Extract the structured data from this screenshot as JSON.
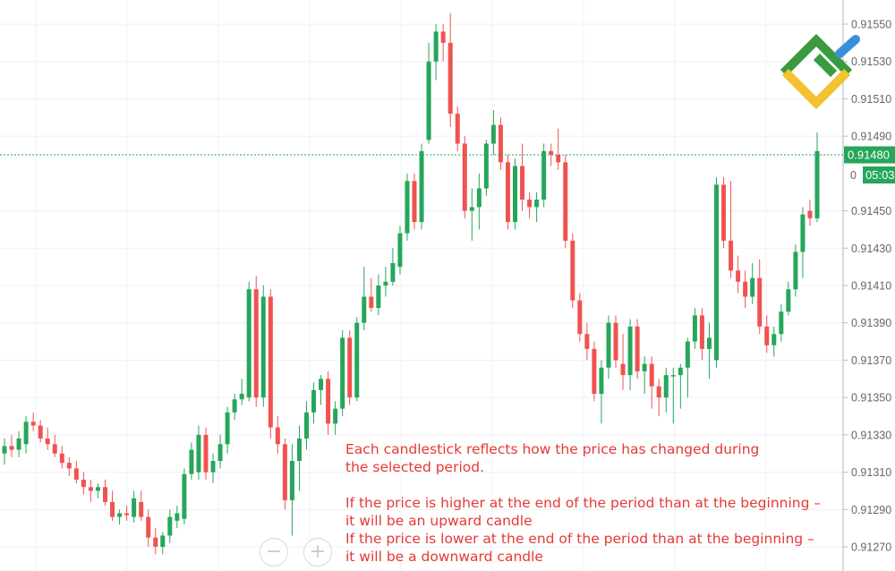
{
  "chart_data": {
    "type": "candlestick",
    "ylim": [
      0.91265,
      0.9156
    ],
    "y_ticks": [
      "0.91550",
      "0.91530",
      "0.91510",
      "0.91490",
      "0.91450",
      "0.91430",
      "0.91410",
      "0.91390",
      "0.91370",
      "0.91350",
      "0.91330",
      "0.91310",
      "0.91290",
      "0.91270"
    ],
    "current_price": {
      "value": 0.9148,
      "label": "0.91480",
      "timer": "05:03"
    },
    "partial_tick_label": "0",
    "grid": true,
    "colors": {
      "up": "#26a65b",
      "down": "#ef5350",
      "price_tag": "#26a65b",
      "grid": "#eef1f5",
      "axis": "#b0b6c0"
    },
    "candles": [
      {
        "o": 0.9132,
        "h": 0.91328,
        "l": 0.91314,
        "c": 0.91324
      },
      {
        "o": 0.91324,
        "h": 0.9133,
        "l": 0.91318,
        "c": 0.91322
      },
      {
        "o": 0.91322,
        "h": 0.91332,
        "l": 0.91318,
        "c": 0.91328
      },
      {
        "o": 0.91325,
        "h": 0.9134,
        "l": 0.9132,
        "c": 0.91337
      },
      {
        "o": 0.91337,
        "h": 0.91342,
        "l": 0.91332,
        "c": 0.91335
      },
      {
        "o": 0.91335,
        "h": 0.91338,
        "l": 0.91326,
        "c": 0.91328
      },
      {
        "o": 0.91328,
        "h": 0.91334,
        "l": 0.91322,
        "c": 0.91325
      },
      {
        "o": 0.91325,
        "h": 0.9133,
        "l": 0.91318,
        "c": 0.9132
      },
      {
        "o": 0.9132,
        "h": 0.91324,
        "l": 0.91312,
        "c": 0.91315
      },
      {
        "o": 0.91315,
        "h": 0.91318,
        "l": 0.91308,
        "c": 0.91312
      },
      {
        "o": 0.91312,
        "h": 0.91316,
        "l": 0.91304,
        "c": 0.91306
      },
      {
        "o": 0.91306,
        "h": 0.9131,
        "l": 0.91298,
        "c": 0.91302
      },
      {
        "o": 0.91302,
        "h": 0.91306,
        "l": 0.91294,
        "c": 0.913
      },
      {
        "o": 0.913,
        "h": 0.91304,
        "l": 0.91296,
        "c": 0.91302
      },
      {
        "o": 0.91302,
        "h": 0.91306,
        "l": 0.91292,
        "c": 0.91294
      },
      {
        "o": 0.91294,
        "h": 0.913,
        "l": 0.91284,
        "c": 0.91286
      },
      {
        "o": 0.91286,
        "h": 0.9129,
        "l": 0.91282,
        "c": 0.91288
      },
      {
        "o": 0.91288,
        "h": 0.91292,
        "l": 0.91284,
        "c": 0.91287
      },
      {
        "o": 0.91286,
        "h": 0.913,
        "l": 0.91283,
        "c": 0.91296
      },
      {
        "o": 0.91294,
        "h": 0.913,
        "l": 0.91284,
        "c": 0.91286
      },
      {
        "o": 0.91286,
        "h": 0.9129,
        "l": 0.9127,
        "c": 0.91275
      },
      {
        "o": 0.91275,
        "h": 0.9128,
        "l": 0.91266,
        "c": 0.9127
      },
      {
        "o": 0.9127,
        "h": 0.91278,
        "l": 0.91266,
        "c": 0.91276
      },
      {
        "o": 0.91276,
        "h": 0.9129,
        "l": 0.91272,
        "c": 0.91286
      },
      {
        "o": 0.91284,
        "h": 0.91292,
        "l": 0.9128,
        "c": 0.91288
      },
      {
        "o": 0.91285,
        "h": 0.91312,
        "l": 0.91282,
        "c": 0.91309
      },
      {
        "o": 0.91309,
        "h": 0.91326,
        "l": 0.91306,
        "c": 0.91322
      },
      {
        "o": 0.9131,
        "h": 0.91335,
        "l": 0.91306,
        "c": 0.9133
      },
      {
        "o": 0.9133,
        "h": 0.91334,
        "l": 0.91306,
        "c": 0.9131
      },
      {
        "o": 0.9131,
        "h": 0.9132,
        "l": 0.91304,
        "c": 0.91316
      },
      {
        "o": 0.91316,
        "h": 0.9133,
        "l": 0.91312,
        "c": 0.91325
      },
      {
        "o": 0.91325,
        "h": 0.91345,
        "l": 0.9132,
        "c": 0.91342
      },
      {
        "o": 0.91342,
        "h": 0.91352,
        "l": 0.91338,
        "c": 0.91349
      },
      {
        "o": 0.91349,
        "h": 0.9136,
        "l": 0.91346,
        "c": 0.91352
      },
      {
        "o": 0.9135,
        "h": 0.91412,
        "l": 0.91348,
        "c": 0.91408
      },
      {
        "o": 0.91408,
        "h": 0.91415,
        "l": 0.91345,
        "c": 0.9135
      },
      {
        "o": 0.9135,
        "h": 0.9141,
        "l": 0.91345,
        "c": 0.91404
      },
      {
        "o": 0.91404,
        "h": 0.91408,
        "l": 0.91328,
        "c": 0.91334
      },
      {
        "o": 0.91334,
        "h": 0.9134,
        "l": 0.9132,
        "c": 0.91325
      },
      {
        "o": 0.91325,
        "h": 0.91328,
        "l": 0.9129,
        "c": 0.91295
      },
      {
        "o": 0.91295,
        "h": 0.91325,
        "l": 0.91276,
        "c": 0.91316
      },
      {
        "o": 0.91316,
        "h": 0.91335,
        "l": 0.913,
        "c": 0.91328
      },
      {
        "o": 0.91328,
        "h": 0.91348,
        "l": 0.91322,
        "c": 0.91342
      },
      {
        "o": 0.91342,
        "h": 0.91358,
        "l": 0.91336,
        "c": 0.91354
      },
      {
        "o": 0.91354,
        "h": 0.91362,
        "l": 0.91346,
        "c": 0.9136
      },
      {
        "o": 0.9136,
        "h": 0.91364,
        "l": 0.9133,
        "c": 0.91336
      },
      {
        "o": 0.91336,
        "h": 0.91348,
        "l": 0.9133,
        "c": 0.91344
      },
      {
        "o": 0.91344,
        "h": 0.91386,
        "l": 0.9134,
        "c": 0.91382
      },
      {
        "o": 0.91382,
        "h": 0.91386,
        "l": 0.91346,
        "c": 0.9135
      },
      {
        "o": 0.9135,
        "h": 0.91393,
        "l": 0.91348,
        "c": 0.9139
      },
      {
        "o": 0.9139,
        "h": 0.9142,
        "l": 0.91386,
        "c": 0.91404
      },
      {
        "o": 0.91404,
        "h": 0.91414,
        "l": 0.91396,
        "c": 0.91398
      },
      {
        "o": 0.91398,
        "h": 0.91416,
        "l": 0.91394,
        "c": 0.9141
      },
      {
        "o": 0.9141,
        "h": 0.9142,
        "l": 0.91404,
        "c": 0.91412
      },
      {
        "o": 0.91412,
        "h": 0.9143,
        "l": 0.9141,
        "c": 0.91422
      },
      {
        "o": 0.9142,
        "h": 0.91442,
        "l": 0.91416,
        "c": 0.91438
      },
      {
        "o": 0.91438,
        "h": 0.9147,
        "l": 0.91434,
        "c": 0.91466
      },
      {
        "o": 0.91466,
        "h": 0.9147,
        "l": 0.9144,
        "c": 0.91444
      },
      {
        "o": 0.91444,
        "h": 0.91486,
        "l": 0.9144,
        "c": 0.91482
      },
      {
        "o": 0.91488,
        "h": 0.9154,
        "l": 0.91486,
        "c": 0.9153
      },
      {
        "o": 0.9153,
        "h": 0.9155,
        "l": 0.9152,
        "c": 0.91546
      },
      {
        "o": 0.91546,
        "h": 0.9155,
        "l": 0.9153,
        "c": 0.9154
      },
      {
        "o": 0.9154,
        "h": 0.91556,
        "l": 0.91495,
        "c": 0.91502
      },
      {
        "o": 0.91502,
        "h": 0.91506,
        "l": 0.91482,
        "c": 0.91486
      },
      {
        "o": 0.91486,
        "h": 0.9149,
        "l": 0.91446,
        "c": 0.9145
      },
      {
        "o": 0.9145,
        "h": 0.91462,
        "l": 0.91434,
        "c": 0.91452
      },
      {
        "o": 0.91452,
        "h": 0.9147,
        "l": 0.9144,
        "c": 0.91462
      },
      {
        "o": 0.91462,
        "h": 0.91488,
        "l": 0.91458,
        "c": 0.91486
      },
      {
        "o": 0.91486,
        "h": 0.91504,
        "l": 0.9148,
        "c": 0.91496
      },
      {
        "o": 0.91496,
        "h": 0.915,
        "l": 0.91472,
        "c": 0.91476
      },
      {
        "o": 0.91476,
        "h": 0.9148,
        "l": 0.9144,
        "c": 0.91444
      },
      {
        "o": 0.91444,
        "h": 0.91478,
        "l": 0.9144,
        "c": 0.91474
      },
      {
        "o": 0.91474,
        "h": 0.91486,
        "l": 0.9145,
        "c": 0.91456
      },
      {
        "o": 0.91456,
        "h": 0.9146,
        "l": 0.91446,
        "c": 0.91452
      },
      {
        "o": 0.91452,
        "h": 0.9146,
        "l": 0.91444,
        "c": 0.91456
      },
      {
        "o": 0.91456,
        "h": 0.91486,
        "l": 0.91452,
        "c": 0.91482
      },
      {
        "o": 0.91482,
        "h": 0.91486,
        "l": 0.91474,
        "c": 0.9148
      },
      {
        "o": 0.9148,
        "h": 0.91494,
        "l": 0.91472,
        "c": 0.91476
      },
      {
        "o": 0.91476,
        "h": 0.9148,
        "l": 0.9143,
        "c": 0.91434
      },
      {
        "o": 0.91434,
        "h": 0.91438,
        "l": 0.91398,
        "c": 0.91402
      },
      {
        "o": 0.91402,
        "h": 0.91406,
        "l": 0.9138,
        "c": 0.91384
      },
      {
        "o": 0.91384,
        "h": 0.9139,
        "l": 0.9137,
        "c": 0.91376
      },
      {
        "o": 0.91376,
        "h": 0.9138,
        "l": 0.91348,
        "c": 0.91352
      },
      {
        "o": 0.91352,
        "h": 0.9137,
        "l": 0.91336,
        "c": 0.91366
      },
      {
        "o": 0.91366,
        "h": 0.91394,
        "l": 0.9136,
        "c": 0.9139
      },
      {
        "o": 0.9139,
        "h": 0.91394,
        "l": 0.91366,
        "c": 0.9137
      },
      {
        "o": 0.91368,
        "h": 0.91384,
        "l": 0.91354,
        "c": 0.91362
      },
      {
        "o": 0.91362,
        "h": 0.91392,
        "l": 0.91354,
        "c": 0.91388
      },
      {
        "o": 0.91388,
        "h": 0.91392,
        "l": 0.9136,
        "c": 0.91364
      },
      {
        "o": 0.91364,
        "h": 0.91372,
        "l": 0.91352,
        "c": 0.91368
      },
      {
        "o": 0.91368,
        "h": 0.91372,
        "l": 0.91344,
        "c": 0.91356
      },
      {
        "o": 0.91356,
        "h": 0.9136,
        "l": 0.9134,
        "c": 0.9135
      },
      {
        "o": 0.9135,
        "h": 0.91366,
        "l": 0.91342,
        "c": 0.91362
      },
      {
        "o": 0.91362,
        "h": 0.91366,
        "l": 0.91336,
        "c": 0.91362
      },
      {
        "o": 0.91362,
        "h": 0.91368,
        "l": 0.91344,
        "c": 0.91366
      },
      {
        "o": 0.91366,
        "h": 0.91382,
        "l": 0.9135,
        "c": 0.9138
      },
      {
        "o": 0.9138,
        "h": 0.91398,
        "l": 0.91376,
        "c": 0.91394
      },
      {
        "o": 0.91394,
        "h": 0.91398,
        "l": 0.9137,
        "c": 0.91376
      },
      {
        "o": 0.91376,
        "h": 0.9139,
        "l": 0.9136,
        "c": 0.91382
      },
      {
        "o": 0.9137,
        "h": 0.91468,
        "l": 0.91366,
        "c": 0.91464
      },
      {
        "o": 0.91464,
        "h": 0.91468,
        "l": 0.9143,
        "c": 0.91434
      },
      {
        "o": 0.91434,
        "h": 0.91466,
        "l": 0.91414,
        "c": 0.91418
      },
      {
        "o": 0.91418,
        "h": 0.91426,
        "l": 0.91406,
        "c": 0.91412
      },
      {
        "o": 0.91412,
        "h": 0.91418,
        "l": 0.91398,
        "c": 0.91404
      },
      {
        "o": 0.91404,
        "h": 0.91422,
        "l": 0.914,
        "c": 0.91414
      },
      {
        "o": 0.91414,
        "h": 0.91424,
        "l": 0.91384,
        "c": 0.91388
      },
      {
        "o": 0.91388,
        "h": 0.91394,
        "l": 0.91374,
        "c": 0.91378
      },
      {
        "o": 0.91378,
        "h": 0.91388,
        "l": 0.91372,
        "c": 0.91384
      },
      {
        "o": 0.91384,
        "h": 0.914,
        "l": 0.9138,
        "c": 0.91396
      },
      {
        "o": 0.91396,
        "h": 0.91412,
        "l": 0.91394,
        "c": 0.91408
      },
      {
        "o": 0.91408,
        "h": 0.91432,
        "l": 0.91404,
        "c": 0.91428
      },
      {
        "o": 0.91428,
        "h": 0.91452,
        "l": 0.91414,
        "c": 0.91448
      },
      {
        "o": 0.9145,
        "h": 0.91456,
        "l": 0.91442,
        "c": 0.91446
      },
      {
        "o": 0.91446,
        "h": 0.91492,
        "l": 0.91444,
        "c": 0.91482
      }
    ]
  },
  "annotation": {
    "line1": "Each candlestick reflects how the price has changed during",
    "line2": "the selected period.",
    "line3": "If the price is higher at the end of the period than at the beginning –",
    "line4": "it will be an upward candle",
    "line5": "If the price is lower at the end of the period than at the beginning –",
    "line6": "it will be a downward candle"
  },
  "controls": {
    "zoom_out": "−",
    "zoom_in": "+"
  },
  "logo": {
    "icon": "liteforex-logo-icon",
    "colors": [
      "#3a9a3f",
      "#f2c230",
      "#3a8fd9"
    ]
  }
}
